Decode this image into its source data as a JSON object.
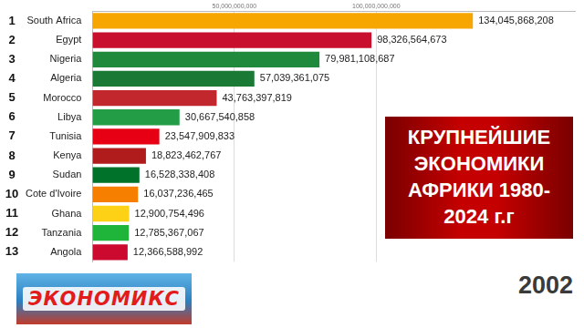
{
  "chart_data": {
    "type": "bar",
    "orientation": "horizontal",
    "title": "КРУПНЕЙШИЕ ЭКОНОМИКИ АФРИКИ 1980-2024 г.г",
    "subtitle": "2002",
    "annotations": [
      "ЭКОНОМИКС"
    ],
    "ranks": [
      1,
      2,
      3,
      4,
      5,
      6,
      7,
      8,
      9,
      10,
      11,
      12,
      13
    ],
    "categories": [
      "South Africa",
      "Egypt",
      "Nigeria",
      "Algeria",
      "Morocco",
      "Libya",
      "Tunisia",
      "Kenya",
      "Sudan",
      "Cote d'Ivoire",
      "Ghana",
      "Tanzania",
      "Angola"
    ],
    "values": [
      134045868208,
      98326564673,
      79981108687,
      57039361075,
      43763397819,
      30667540858,
      23547909833,
      18823462767,
      16528338408,
      16037236465,
      12900754496,
      12785367067,
      12366588992
    ],
    "value_labels": [
      "134,045,868,208",
      "98,326,564,673",
      "79,981,108,687",
      "57,039,361,075",
      "43,763,397,819",
      "30,667,540,858",
      "23,547,909,833",
      "18,823,462,767",
      "16,528,338,408",
      "16,037,236,465",
      "12,900,754,496",
      "12,785,367,067",
      "12,366,588,992"
    ],
    "colors": [
      "#f7a600",
      "#c8102e",
      "#1f8a3c",
      "#1a7a35",
      "#c1272d",
      "#239e46",
      "#e70013",
      "#b01c1c",
      "#007229",
      "#f77f00",
      "#fcd116",
      "#1eb53a",
      "#cc092f"
    ],
    "xlim": [
      0,
      170000000000
    ],
    "xticks": [
      {
        "value": 50000000000,
        "label": "50,000,000,000"
      },
      {
        "value": 100000000000,
        "label": "100,000,000,000"
      }
    ],
    "grid": true,
    "data_labels": true
  }
}
